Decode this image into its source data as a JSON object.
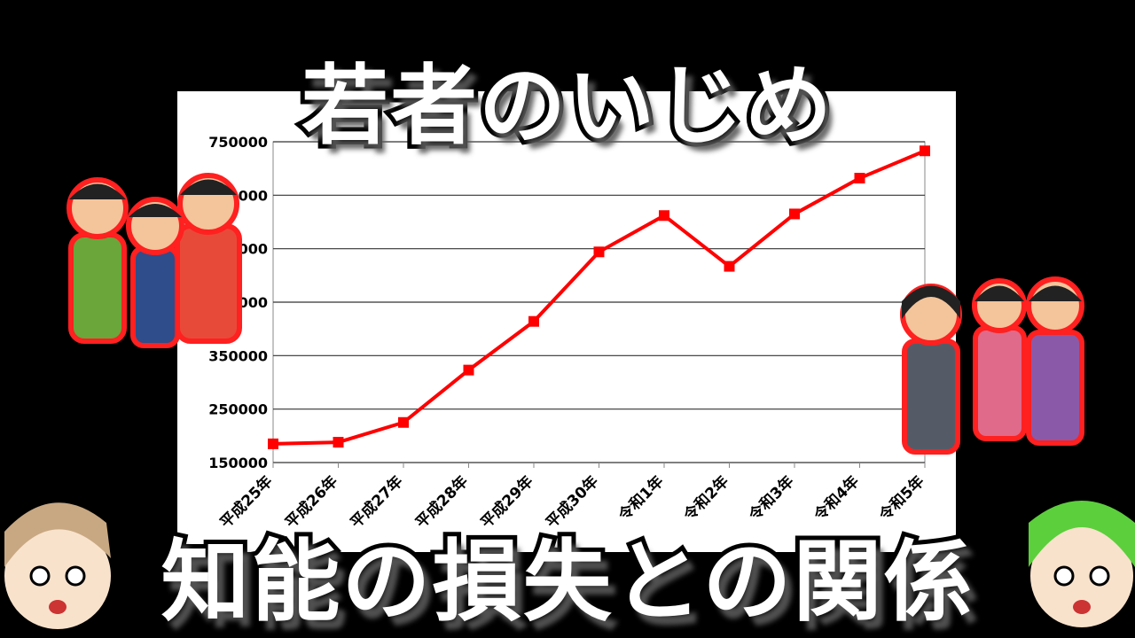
{
  "title_top": "若者のいじめ",
  "title_bottom": "知能の損失との関係",
  "colors": {
    "line": "#ff0000",
    "background": "#000000",
    "panel": "#ffffff"
  },
  "decorations": [
    "bullying-group-illustration",
    "crying-girl-gossip-illustration",
    "shocked-character-left",
    "shocked-green-character-right"
  ],
  "chart_data": {
    "type": "line",
    "title": "",
    "xlabel": "",
    "ylabel": "",
    "categories": [
      "平成25年",
      "平成26年",
      "平成27年",
      "平成28年",
      "平成29年",
      "平成30年",
      "令和1年",
      "令和2年",
      "令和3年",
      "令和4年",
      "令和5年"
    ],
    "series": [
      {
        "values": [
          185000,
          188000,
          225000,
          323000,
          414000,
          544000,
          612000,
          517000,
          615000,
          682000,
          733000
        ]
      }
    ],
    "ylim": [
      150000,
      750000
    ],
    "yticks": [
      "150000",
      "250000",
      "350000",
      "450000",
      "550000",
      "650000",
      "750000"
    ],
    "grid": true,
    "legend": "none"
  }
}
